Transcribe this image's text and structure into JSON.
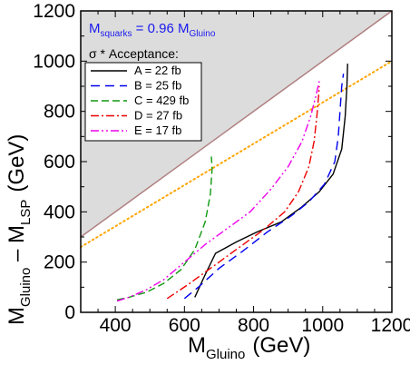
{
  "chart_data": {
    "type": "line",
    "xlabel": {
      "main": "M",
      "sub": "Gluino",
      "unit": "(GeV)"
    },
    "ylabel": {
      "main_a": "M",
      "sub_a": "Gluino",
      "mid": " – M",
      "sub_b": "LSP",
      "unit": "(GeV)"
    },
    "xlim": [
      300,
      1200
    ],
    "ylim": [
      0,
      1200
    ],
    "x_ticks": [
      400,
      600,
      800,
      1000,
      1200
    ],
    "y_ticks": [
      0,
      200,
      400,
      600,
      800,
      1000,
      1200
    ],
    "grid": false,
    "annotation": {
      "pre": "M",
      "sub1": "squarks",
      "mid": " = 0.96 M",
      "sub2": "Gluino",
      "color": "#1a1aee"
    },
    "excluded_region": {
      "fill": "#dcdcdc",
      "line_color": "#b08080",
      "boundary": [
        [
          300,
          300
        ],
        [
          1200,
          1200
        ]
      ]
    },
    "reference_line": {
      "color": "#ffa500",
      "points": [
        [
          300,
          260
        ],
        [
          1200,
          1000
        ]
      ]
    },
    "legend": {
      "title": "σ * Acceptance:",
      "placement": "top-left"
    },
    "series": [
      {
        "name": "A = 22 fb",
        "color": "#000000",
        "dash": "",
        "points": [
          [
            630,
            60
          ],
          [
            660,
            150
          ],
          [
            690,
            235
          ],
          [
            750,
            280
          ],
          [
            810,
            320
          ],
          [
            880,
            360
          ],
          [
            940,
            420
          ],
          [
            990,
            480
          ],
          [
            1030,
            550
          ],
          [
            1055,
            650
          ],
          [
            1065,
            780
          ],
          [
            1070,
            900
          ],
          [
            1072,
            990
          ]
        ]
      },
      {
        "name": "B = 25 fb",
        "color": "#0000ee",
        "dash": "10,6",
        "points": [
          [
            600,
            55
          ],
          [
            640,
            100
          ],
          [
            700,
            175
          ],
          [
            770,
            245
          ],
          [
            840,
            320
          ],
          [
            910,
            385
          ],
          [
            960,
            440
          ],
          [
            1005,
            510
          ],
          [
            1035,
            600
          ],
          [
            1045,
            700
          ],
          [
            1050,
            800
          ],
          [
            1055,
            900
          ],
          [
            1060,
            950
          ]
        ]
      },
      {
        "name": "C = 429 fb",
        "color": "#119911",
        "dash": "8,4",
        "points": [
          [
            405,
            50
          ],
          [
            440,
            60
          ],
          [
            490,
            80
          ],
          [
            540,
            115
          ],
          [
            590,
            170
          ],
          [
            630,
            250
          ],
          [
            660,
            360
          ],
          [
            675,
            470
          ],
          [
            680,
            570
          ],
          [
            678,
            620
          ]
        ]
      },
      {
        "name": "D = 27 fb",
        "color": "#ee0000",
        "dash": "9,3,2,3",
        "points": [
          [
            550,
            55
          ],
          [
            610,
            110
          ],
          [
            680,
            180
          ],
          [
            760,
            260
          ],
          [
            830,
            330
          ],
          [
            890,
            400
          ],
          [
            930,
            480
          ],
          [
            960,
            580
          ],
          [
            975,
            680
          ],
          [
            983,
            780
          ],
          [
            988,
            860
          ],
          [
            990,
            900
          ]
        ]
      },
      {
        "name": "E = 17 fb",
        "color": "#ee00ee",
        "dash": "9,3,2,3,2,3",
        "points": [
          [
            405,
            45
          ],
          [
            440,
            60
          ],
          [
            490,
            90
          ],
          [
            540,
            130
          ],
          [
            600,
            200
          ],
          [
            660,
            270
          ],
          [
            720,
            330
          ],
          [
            790,
            400
          ],
          [
            850,
            490
          ],
          [
            900,
            580
          ],
          [
            940,
            680
          ],
          [
            965,
            780
          ],
          [
            980,
            860
          ],
          [
            990,
            920
          ]
        ]
      }
    ]
  }
}
